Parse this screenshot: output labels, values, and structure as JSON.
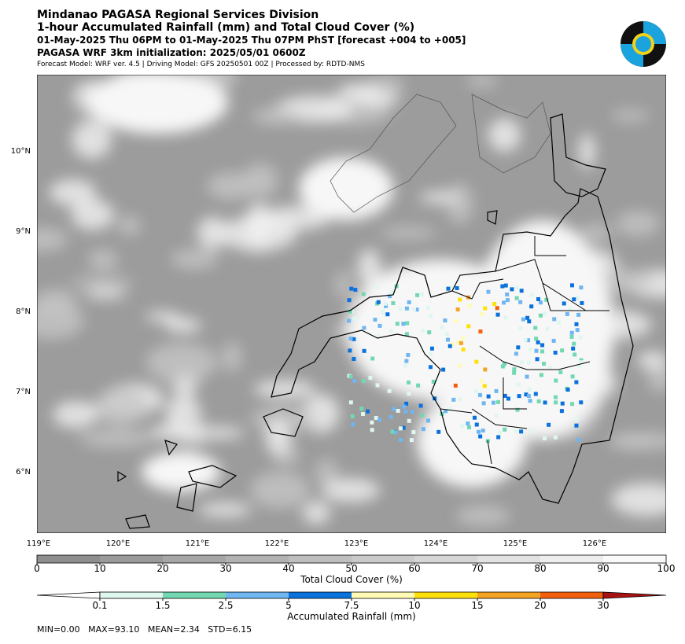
{
  "header": {
    "lines": [
      "Mindanao PAGASA Regional Services Division",
      "1-hour Accumulated Rainfall (mm) and Total Cloud Cover (%)",
      "01-May-2025 Thu 06PM to 01-May-2025 Thu 07PM PhST [forecast +004 to +005]",
      "PAGASA WRF 3km initialization: 2025/05/01 0600Z",
      "Forecast Model: WRF ver. 4.5 | Driving Model: GFS 20250501 00Z | Processed by: RDTD-NMS"
    ]
  },
  "map": {
    "lat_labels": [
      "10°N",
      "9°N",
      "8°N",
      "7°N",
      "6°N"
    ],
    "lon_labels": [
      "119°E",
      "120°E",
      "121°E",
      "122°E",
      "123°E",
      "124°E",
      "125°E",
      "126°E"
    ]
  },
  "cloud_colorbar": {
    "label": "Total Cloud Cover (%)",
    "ticks": [
      "0",
      "10",
      "20",
      "30",
      "40",
      "50",
      "60",
      "70",
      "80",
      "90",
      "100"
    ],
    "colors": [
      "#8f8f8f",
      "#9a9a9a",
      "#a6a6a6",
      "#b2b2b2",
      "#bebebe",
      "#cacaca",
      "#d6d6d6",
      "#e2e2e2",
      "#eeeeee",
      "#fafafa"
    ]
  },
  "rain_colorbar": {
    "label": "Accumulated Rainfall (mm)",
    "ticks": [
      "0.1",
      "1.5",
      "2.5",
      "5",
      "7.5",
      "10",
      "15",
      "20",
      "30"
    ],
    "under_color": "#ffffff",
    "colors": [
      "#dff7ef",
      "#72d8b2",
      "#6fb6f2",
      "#0a72dc",
      "#fffbb5",
      "#ffe10a",
      "#f5a322",
      "#f2600e"
    ],
    "over_color": "#a81212"
  },
  "stats": "MIN=0.00   MAX=93.10   MEAN=2.34   STD=6.15"
}
